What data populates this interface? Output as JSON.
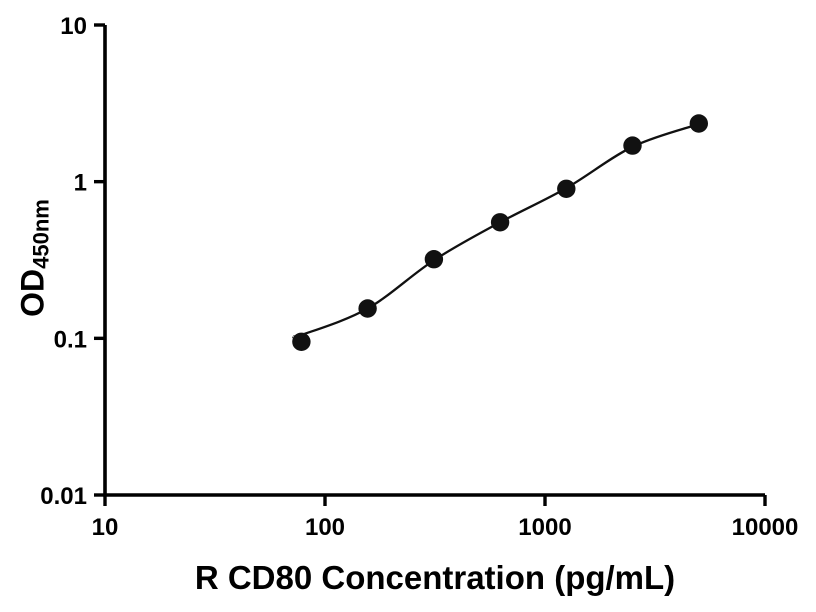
{
  "chart_data": {
    "type": "scatter",
    "title": "",
    "xlabel": "R CD80 Concentration (pg/mL)",
    "ylabel_main": "OD",
    "ylabel_sub": "450nm",
    "x": [
      78.125,
      156.25,
      312.5,
      625,
      1250,
      2500,
      5000
    ],
    "y": [
      0.095,
      0.155,
      0.32,
      0.55,
      0.9,
      1.7,
      2.35
    ],
    "curve_x": [
      72,
      78.125,
      156.25,
      312.5,
      625,
      1250,
      2500,
      5000
    ],
    "curve_y": [
      0.103,
      0.105,
      0.155,
      0.315,
      0.55,
      0.91,
      1.67,
      2.33
    ],
    "xlim": [
      10,
      10000
    ],
    "ylim": [
      0.01,
      10
    ],
    "x_scale": "log",
    "y_scale": "log",
    "x_ticks": [
      10,
      100,
      1000,
      10000
    ],
    "x_tick_labels": [
      "10",
      "100",
      "1000",
      "10000"
    ],
    "y_ticks": [
      0.01,
      0.1,
      1,
      10
    ],
    "y_tick_labels": [
      "0.01",
      "0.1",
      "1",
      "10"
    ],
    "grid": false,
    "legend": "none",
    "axis_color": "#000000",
    "marker_color": "#111111",
    "line_color": "#111111"
  }
}
